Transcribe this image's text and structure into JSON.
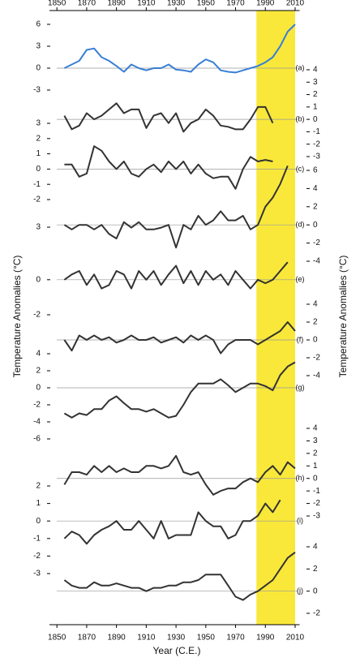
{
  "chart_data": {
    "type": "line",
    "xlabel": "Year (C.E.)",
    "ylabel": "Temperature Anomalies (°C)",
    "y2label": "Temperature Anomalies (°C)",
    "xlim": [
      1845,
      2013
    ],
    "xticks": [
      1850,
      1870,
      1890,
      1910,
      1930,
      1950,
      1970,
      1990,
      2010
    ],
    "highlight": {
      "from": 1984,
      "to": 2010,
      "color": "#f9e83a"
    },
    "x": [
      1855,
      1860,
      1865,
      1870,
      1875,
      1880,
      1885,
      1890,
      1895,
      1900,
      1905,
      1910,
      1915,
      1920,
      1925,
      1930,
      1935,
      1940,
      1945,
      1950,
      1955,
      1960,
      1965,
      1970,
      1975,
      1980,
      1985,
      1990,
      1995,
      2000,
      2005,
      2010
    ],
    "panels": [
      {
        "label": "(a)",
        "axis": "y",
        "color": "#3a7fd5",
        "ylim": [
          -3,
          6
        ],
        "yticks": [
          -3,
          0,
          3,
          6
        ],
        "values": [
          0,
          0.5,
          1,
          2.5,
          2.7,
          1.5,
          1,
          0.3,
          -0.5,
          0.5,
          0,
          -0.3,
          0,
          0,
          0.5,
          -0.2,
          -0.3,
          -0.5,
          0.5,
          1.2,
          0.8,
          -0.3,
          -0.5,
          -0.6,
          -0.3,
          0,
          0.3,
          0.8,
          1.5,
          3,
          5,
          6
        ]
      },
      {
        "label": "(b)",
        "axis": "y2",
        "color": "#333333",
        "ylim": [
          -3,
          4
        ],
        "yticks": [
          -3,
          -2,
          -1,
          0,
          1,
          2,
          3,
          4
        ],
        "values": [
          0.3,
          -0.8,
          -0.5,
          0.5,
          0,
          0.3,
          0.8,
          1.3,
          0.5,
          0.8,
          0.8,
          -0.7,
          0.3,
          0.5,
          -0.3,
          0.5,
          -1,
          -0.3,
          0,
          0.8,
          0.3,
          -0.5,
          -0.6,
          -0.8,
          -0.8,
          0,
          1,
          1,
          -0.3,
          null,
          null,
          null
        ]
      },
      {
        "label": "(c)",
        "axis": "y",
        "color": "#333333",
        "ylim": [
          -2,
          3
        ],
        "yticks": [
          -2,
          -1,
          0,
          1,
          2,
          3
        ],
        "values": [
          0.3,
          0.3,
          -0.5,
          -0.3,
          1.5,
          1.2,
          0.5,
          0,
          0.5,
          -0.3,
          -0.5,
          0,
          0.3,
          -0.2,
          0.5,
          0,
          0.5,
          -0.3,
          0.3,
          -0.3,
          -0.6,
          -0.5,
          -0.5,
          -1.3,
          0,
          0.8,
          0.5,
          0.6,
          0.5,
          null,
          null,
          null
        ]
      },
      {
        "label": "(d)",
        "axis": "y2",
        "color": "#333333",
        "ylim": [
          -4,
          6
        ],
        "yticks": [
          -4,
          -2,
          0,
          2,
          4,
          6
        ],
        "values": [
          0,
          -0.5,
          0,
          0,
          -0.5,
          0,
          -1,
          -1.5,
          0.3,
          -0.3,
          0.3,
          -0.5,
          -0.5,
          -0.3,
          0,
          -2.5,
          0,
          -0.5,
          1,
          0,
          0.5,
          1.5,
          0.5,
          0.5,
          1,
          -0.5,
          0,
          2,
          3,
          4.5,
          6.5,
          null
        ]
      },
      {
        "label": "(e)",
        "axis": "y",
        "color": "#333333",
        "ylim": [
          -2,
          3
        ],
        "yticks": [
          -2,
          0,
          3
        ],
        "values": [
          0,
          0.3,
          0.5,
          -0.3,
          0.3,
          -0.5,
          -0.3,
          0.5,
          0.3,
          -0.5,
          0.5,
          0,
          0.5,
          -0.3,
          0.3,
          0.8,
          -0.2,
          0.5,
          -0.3,
          0.5,
          0,
          0.3,
          -0.3,
          0.5,
          0,
          -0.5,
          0,
          -0.2,
          0,
          0.5,
          1,
          null
        ]
      },
      {
        "label": "(f)",
        "axis": "y2",
        "color": "#333333",
        "ylim": [
          -4,
          4
        ],
        "yticks": [
          -4,
          -2,
          0,
          2,
          4
        ],
        "values": [
          0,
          -1.2,
          0.5,
          0,
          0.5,
          0,
          0.3,
          -0.3,
          0,
          0.5,
          0,
          0,
          0.3,
          -0.3,
          0,
          0.3,
          -0.3,
          0.5,
          0,
          0.5,
          0,
          -1.5,
          -0.5,
          0,
          0,
          0,
          -0.5,
          0,
          0.5,
          1,
          2,
          1
        ]
      },
      {
        "label": "(g)",
        "axis": "y",
        "color": "#333333",
        "ylim": [
          -6,
          4
        ],
        "yticks": [
          -6,
          -4,
          -2,
          0,
          2,
          4
        ],
        "values": [
          -3,
          -3.5,
          -3,
          -3.2,
          -2.5,
          -2.5,
          -1.5,
          -1,
          -1.8,
          -2.5,
          -2.5,
          -2.8,
          -2.5,
          -3,
          -3.5,
          -3.3,
          -2,
          -0.5,
          0.5,
          0.5,
          0.5,
          1,
          0.3,
          -0.5,
          0,
          0.5,
          0.5,
          0.2,
          -0.3,
          1.5,
          2.5,
          3
        ]
      },
      {
        "label": "(h)",
        "axis": "y2",
        "color": "#333333",
        "ylim": [
          -3,
          4
        ],
        "yticks": [
          -3,
          -2,
          -1,
          0,
          1,
          2,
          3,
          4
        ],
        "values": [
          -0.5,
          0.5,
          0.5,
          0.3,
          1,
          0.5,
          1,
          0.5,
          0.8,
          0.5,
          0.5,
          1,
          1,
          0.8,
          1,
          1.8,
          0.5,
          0.3,
          0.5,
          -0.5,
          -1.3,
          -1,
          -0.8,
          -0.8,
          -0.3,
          0,
          -0.3,
          0.5,
          1,
          0.3,
          1.3,
          0.8
        ]
      },
      {
        "label": "(i)",
        "axis": "y",
        "color": "#333333",
        "ylim": [
          -3,
          2
        ],
        "yticks": [
          -3,
          -2,
          -1,
          0,
          1,
          2
        ],
        "values": [
          -1,
          -0.6,
          -0.8,
          -1.3,
          -0.8,
          -0.5,
          -0.3,
          0,
          -0.5,
          -0.5,
          0,
          -0.5,
          -1,
          0,
          -1,
          -0.8,
          -0.8,
          -0.8,
          0.5,
          0,
          -0.3,
          -0.3,
          -1,
          -0.8,
          0,
          0,
          0.3,
          1,
          0.5,
          1.2,
          null,
          null
        ]
      },
      {
        "label": "(j)",
        "axis": "y2",
        "color": "#333333",
        "ylim": [
          -2,
          4
        ],
        "yticks": [
          -2,
          0,
          2,
          4
        ],
        "values": [
          1,
          0.5,
          0.3,
          0.3,
          0.8,
          0.5,
          0.5,
          0.7,
          0.5,
          0.3,
          0.3,
          0,
          0.3,
          0.3,
          0.5,
          0.5,
          0.8,
          0.8,
          1,
          1.5,
          1.5,
          1.5,
          0.5,
          -0.5,
          -0.8,
          -0.3,
          0,
          0.5,
          1,
          2,
          3,
          3.5
        ]
      }
    ]
  }
}
